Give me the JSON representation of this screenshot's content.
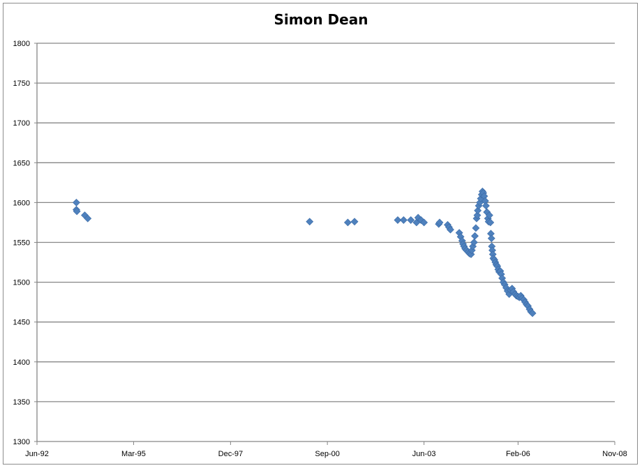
{
  "chart_data": {
    "type": "scatter",
    "title": "Simon Dean",
    "xlabel": "",
    "ylabel": "",
    "x_axis": {
      "type": "date",
      "min": "1992-06-01",
      "max": "2008-11-01",
      "tick_labels": [
        "Jun-92",
        "Mar-95",
        "Dec-97",
        "Sep-00",
        "Jun-03",
        "Feb-06",
        "Nov-08"
      ],
      "tick_dates": [
        "1992-06-01",
        "1995-03-01",
        "1997-12-01",
        "2000-09-01",
        "2003-06-01",
        "2006-02-01",
        "2008-11-01"
      ]
    },
    "y_axis": {
      "min": 1300,
      "max": 1800,
      "step": 50,
      "tick_labels": [
        "1300",
        "1350",
        "1400",
        "1450",
        "1500",
        "1550",
        "1600",
        "1650",
        "1700",
        "1750",
        "1800"
      ]
    },
    "grid": true,
    "legend": "none",
    "marker": "diamond",
    "marker_color": "#4f81bd",
    "series": [
      {
        "points": [
          [
            "1993-07-15",
            1600
          ],
          [
            "1993-07-15",
            1591
          ],
          [
            "1993-07-20",
            1589
          ],
          [
            "1993-10-10",
            1584
          ],
          [
            "1993-11-10",
            1580
          ],
          [
            "2000-03-01",
            1576
          ],
          [
            "2001-04-01",
            1575
          ],
          [
            "2001-06-10",
            1576
          ],
          [
            "2002-09-01",
            1578
          ],
          [
            "2002-11-01",
            1578
          ],
          [
            "2003-01-15",
            1578
          ],
          [
            "2003-03-15",
            1575
          ],
          [
            "2003-04-01",
            1581
          ],
          [
            "2003-05-01",
            1578
          ],
          [
            "2003-06-01",
            1575
          ],
          [
            "2003-11-01",
            1573
          ],
          [
            "2003-11-10",
            1575
          ],
          [
            "2004-02-01",
            1572
          ],
          [
            "2004-02-15",
            1569
          ],
          [
            "2004-03-01",
            1566
          ],
          [
            "2004-06-01",
            1562
          ],
          [
            "2004-06-15",
            1557
          ],
          [
            "2004-07-01",
            1552
          ],
          [
            "2004-07-10",
            1548
          ],
          [
            "2004-07-20",
            1545
          ],
          [
            "2004-08-01",
            1542
          ],
          [
            "2004-08-15",
            1540
          ],
          [
            "2004-09-01",
            1538
          ],
          [
            "2004-09-15",
            1536
          ],
          [
            "2004-10-01",
            1535
          ],
          [
            "2004-10-10",
            1540
          ],
          [
            "2004-10-20",
            1545
          ],
          [
            "2004-11-01",
            1550
          ],
          [
            "2004-11-10",
            1558
          ],
          [
            "2004-11-20",
            1568
          ],
          [
            "2004-11-28",
            1580
          ],
          [
            "2004-12-05",
            1584
          ],
          [
            "2004-12-10",
            1590
          ],
          [
            "2004-12-20",
            1596
          ],
          [
            "2005-01-01",
            1600
          ],
          [
            "2005-01-10",
            1605
          ],
          [
            "2005-01-20",
            1610
          ],
          [
            "2005-01-28",
            1614
          ],
          [
            "2005-02-05",
            1612
          ],
          [
            "2005-02-15",
            1608
          ],
          [
            "2005-02-25",
            1602
          ],
          [
            "2005-03-05",
            1596
          ],
          [
            "2005-03-15",
            1588
          ],
          [
            "2005-03-25",
            1580
          ],
          [
            "2005-04-01",
            1576
          ],
          [
            "2005-04-10",
            1584
          ],
          [
            "2005-04-20",
            1575
          ],
          [
            "2005-04-25",
            1561
          ],
          [
            "2005-05-01",
            1555
          ],
          [
            "2005-05-05",
            1545
          ],
          [
            "2005-05-10",
            1540
          ],
          [
            "2005-05-15",
            1535
          ],
          [
            "2005-05-20",
            1530
          ],
          [
            "2005-06-01",
            1528
          ],
          [
            "2005-06-10",
            1525
          ],
          [
            "2005-06-20",
            1522
          ],
          [
            "2005-07-01",
            1520
          ],
          [
            "2005-07-10",
            1516
          ],
          [
            "2005-07-20",
            1513
          ],
          [
            "2005-08-01",
            1514
          ],
          [
            "2005-08-10",
            1510
          ],
          [
            "2005-08-20",
            1505
          ],
          [
            "2005-09-01",
            1500
          ],
          [
            "2005-09-15",
            1497
          ],
          [
            "2005-10-01",
            1493
          ],
          [
            "2005-10-15",
            1489
          ],
          [
            "2005-11-01",
            1485
          ],
          [
            "2005-11-15",
            1490
          ],
          [
            "2005-12-01",
            1492
          ],
          [
            "2005-12-15",
            1488
          ],
          [
            "2006-01-01",
            1485
          ],
          [
            "2006-01-15",
            1483
          ],
          [
            "2006-02-01",
            1482
          ],
          [
            "2006-02-15",
            1481
          ],
          [
            "2006-03-01",
            1483
          ],
          [
            "2006-03-15",
            1480
          ],
          [
            "2006-04-01",
            1478
          ],
          [
            "2006-04-15",
            1475
          ],
          [
            "2006-05-01",
            1472
          ],
          [
            "2006-05-15",
            1470
          ],
          [
            "2006-06-01",
            1466
          ],
          [
            "2006-06-15",
            1463
          ],
          [
            "2006-07-01",
            1461
          ]
        ]
      }
    ]
  }
}
